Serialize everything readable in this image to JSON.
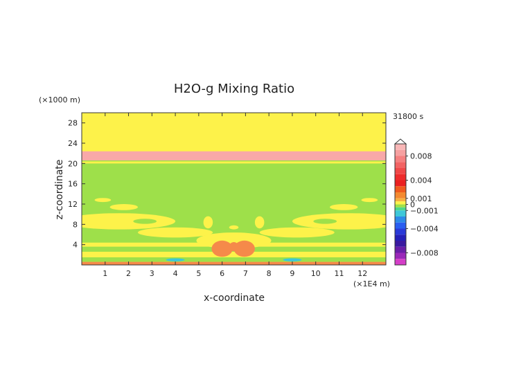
{
  "chart_data": {
    "type": "heatmap",
    "title": "H2O-g Mixing Ratio",
    "time_label": "31800 s",
    "xlabel": "x-coordinate",
    "ylabel": "z-coordinate",
    "x_unit": "(×1E4 m)",
    "y_unit": "(×1000 m)",
    "xlim": [
      0,
      13
    ],
    "ylim": [
      0,
      30
    ],
    "x_ticks": [
      "1",
      "2",
      "3",
      "4",
      "5",
      "6",
      "7",
      "8",
      "9",
      "10",
      "11",
      "12"
    ],
    "y_ticks": [
      "4",
      "8",
      "12",
      "16",
      "20",
      "24",
      "28"
    ],
    "colorbar": {
      "range": [
        -0.01,
        0.01
      ],
      "tick_labels": [
        {
          "value": 0.008,
          "label": "0.008"
        },
        {
          "value": 0.004,
          "label": "0.004"
        },
        {
          "value": 0.001,
          "label": "0.001"
        },
        {
          "value": 0,
          "label": "0"
        },
        {
          "value": -0.001,
          "label": "−0.001"
        },
        {
          "value": -0.004,
          "label": "−0.004"
        },
        {
          "value": -0.008,
          "label": "−0.008"
        }
      ],
      "levels": [
        {
          "value": 0.01,
          "color": "#f9b7b7"
        },
        {
          "value": 0.009,
          "color": "#f6a0a0"
        },
        {
          "value": 0.008,
          "color": "#f58080"
        },
        {
          "value": 0.007,
          "color": "#f26363"
        },
        {
          "value": 0.006,
          "color": "#f04848"
        },
        {
          "value": 0.005,
          "color": "#ee2c2c"
        },
        {
          "value": 0.004,
          "color": "#ea2020"
        },
        {
          "value": 0.003,
          "color": "#f05a1e"
        },
        {
          "value": 0.002,
          "color": "#f48a30"
        },
        {
          "value": 0.001,
          "color": "#f7b040"
        },
        {
          "value": 0.0005,
          "color": "#fdf24a"
        },
        {
          "value": 0,
          "color": "#9ee04a"
        },
        {
          "value": -0.0005,
          "color": "#4ed88a"
        },
        {
          "value": -0.001,
          "color": "#3ec7d8"
        },
        {
          "value": -0.002,
          "color": "#2d8ae8"
        },
        {
          "value": -0.003,
          "color": "#2a5ef0"
        },
        {
          "value": -0.004,
          "color": "#2a3ad8"
        },
        {
          "value": -0.005,
          "color": "#2520b8"
        },
        {
          "value": -0.006,
          "color": "#3a1aa0"
        },
        {
          "value": -0.007,
          "color": "#6a1ea8"
        },
        {
          "value": -0.008,
          "color": "#9a28b8"
        },
        {
          "value": -0.009,
          "color": "#d43ec8"
        },
        {
          "value": -0.01,
          "color": "#f24bc8"
        }
      ]
    },
    "field_colors": {
      "positive_small": "#fdf24a",
      "near_zero": "#9ee04a",
      "positive_high": "#f8a8a8",
      "positive_mid": "#f58a4a",
      "negative_small": "#3ec7d8"
    },
    "regions": [
      {
        "kind": "band",
        "z_from": 0,
        "z_to": 30,
        "level": "positive_small"
      },
      {
        "kind": "band",
        "z_from": 20.6,
        "z_to": 22.4,
        "level": "positive_high"
      },
      {
        "kind": "band",
        "z_from": 0.6,
        "z_to": 20.0,
        "level": "near_zero"
      },
      {
        "kind": "band",
        "z_from": 20.4,
        "z_to": 20.6,
        "level": "near_zero"
      },
      {
        "kind": "band",
        "z_from": 0.0,
        "z_to": 0.6,
        "level": "positive_mid"
      },
      {
        "kind": "band",
        "z_from": 1.5,
        "z_to": 2.6,
        "level": "positive_small"
      },
      {
        "kind": "band",
        "z_from": 3.6,
        "z_to": 4.4,
        "level": "positive_small"
      },
      {
        "kind": "blob",
        "x": 1.6,
        "z": 8.6,
        "rx": 2.4,
        "rz": 1.6,
        "level": "positive_small"
      },
      {
        "kind": "blob",
        "x": 11.4,
        "z": 8.6,
        "rx": 2.4,
        "rz": 1.6,
        "level": "positive_small"
      },
      {
        "kind": "blob",
        "x": 4.0,
        "z": 6.4,
        "rx": 1.6,
        "rz": 1.0,
        "level": "positive_small"
      },
      {
        "kind": "blob",
        "x": 9.2,
        "z": 6.4,
        "rx": 1.6,
        "rz": 1.0,
        "level": "positive_small"
      },
      {
        "kind": "blob",
        "x": 2.7,
        "z": 8.6,
        "rx": 0.5,
        "rz": 0.5,
        "level": "near_zero"
      },
      {
        "kind": "blob",
        "x": 10.4,
        "z": 8.6,
        "rx": 0.5,
        "rz": 0.5,
        "level": "near_zero"
      },
      {
        "kind": "blob",
        "x": 1.8,
        "z": 11.4,
        "rx": 0.6,
        "rz": 0.6,
        "level": "positive_small"
      },
      {
        "kind": "blob",
        "x": 11.2,
        "z": 11.4,
        "rx": 0.6,
        "rz": 0.6,
        "level": "positive_small"
      },
      {
        "kind": "blob",
        "x": 0.9,
        "z": 12.8,
        "rx": 0.35,
        "rz": 0.4,
        "level": "positive_small"
      },
      {
        "kind": "blob",
        "x": 12.3,
        "z": 12.8,
        "rx": 0.35,
        "rz": 0.4,
        "level": "positive_small"
      },
      {
        "kind": "blob",
        "x": 6.5,
        "z": 4.8,
        "rx": 1.6,
        "rz": 1.6,
        "level": "positive_small"
      },
      {
        "kind": "blob",
        "x": 6.0,
        "z": 3.2,
        "rx": 0.45,
        "rz": 1.6,
        "level": "positive_mid"
      },
      {
        "kind": "blob",
        "x": 6.95,
        "z": 3.2,
        "rx": 0.45,
        "rz": 1.6,
        "level": "positive_mid"
      },
      {
        "kind": "blob",
        "x": 6.5,
        "z": 3.6,
        "rx": 0.2,
        "rz": 0.9,
        "level": "positive_mid"
      },
      {
        "kind": "blob",
        "x": 6.5,
        "z": 7.4,
        "rx": 0.2,
        "rz": 0.4,
        "level": "positive_small"
      },
      {
        "kind": "blob",
        "x": 5.4,
        "z": 8.4,
        "rx": 0.2,
        "rz": 1.2,
        "level": "positive_small"
      },
      {
        "kind": "blob",
        "x": 7.6,
        "z": 8.4,
        "rx": 0.2,
        "rz": 1.2,
        "level": "positive_small"
      },
      {
        "kind": "blob",
        "x": 4.0,
        "z": 1.0,
        "rx": 0.4,
        "rz": 0.3,
        "level": "negative_small"
      },
      {
        "kind": "blob",
        "x": 9.0,
        "z": 1.0,
        "rx": 0.4,
        "rz": 0.3,
        "level": "negative_small"
      }
    ]
  }
}
